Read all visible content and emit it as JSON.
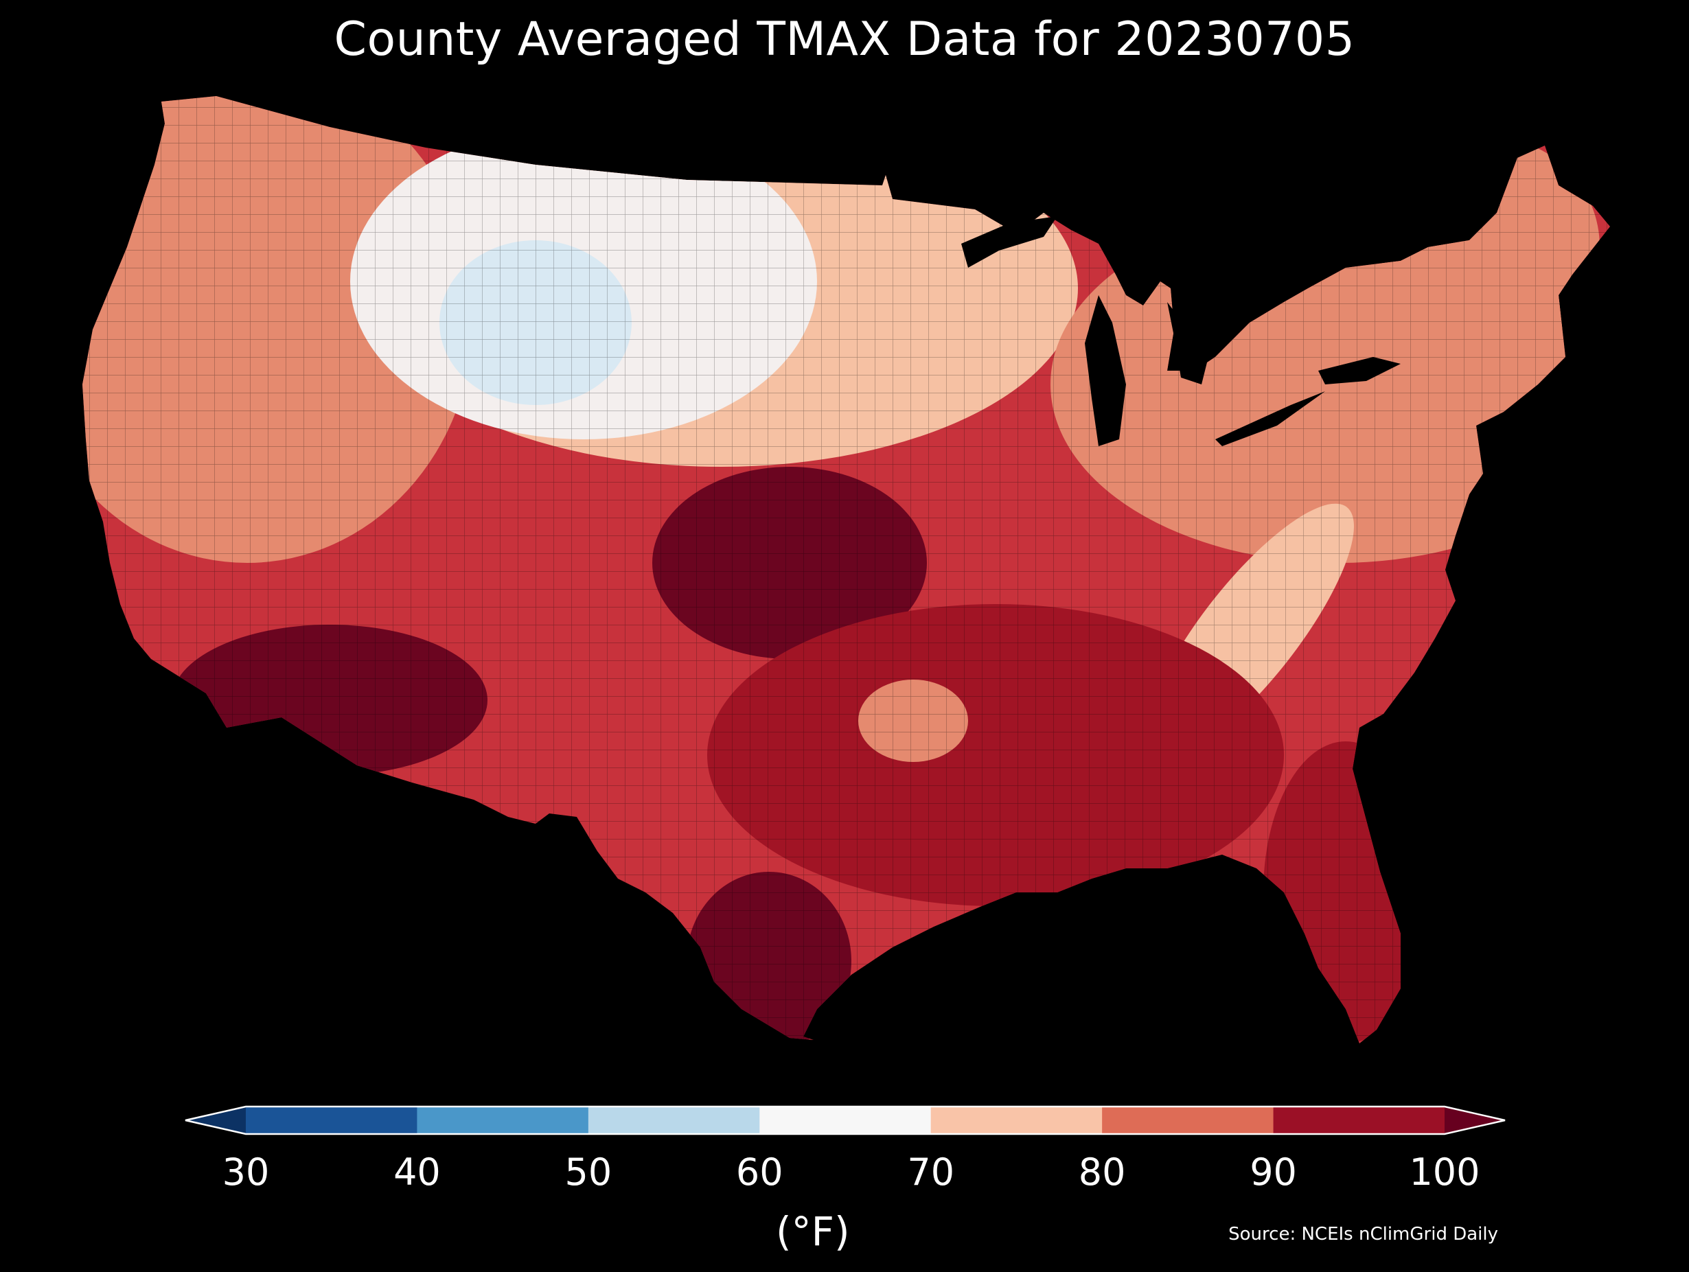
{
  "title": "County Averaged TMAX Data for 20230705",
  "colorbar": {
    "ticks": [
      "30",
      "40",
      "50",
      "60",
      "70",
      "80",
      "90",
      "100"
    ],
    "bins": [
      {
        "from": 30,
        "to": 40,
        "color": "#1a5497"
      },
      {
        "from": 40,
        "to": 50,
        "color": "#4a97c9"
      },
      {
        "from": 50,
        "to": 60,
        "color": "#b9d8ea"
      },
      {
        "from": 60,
        "to": 70,
        "color": "#f7f7f7"
      },
      {
        "from": 70,
        "to": 80,
        "color": "#f9c4a8"
      },
      {
        "from": 80,
        "to": 90,
        "color": "#de6c56"
      },
      {
        "from": 90,
        "to": 100,
        "color": "#9b1026"
      }
    ],
    "under_color": "#0c3264",
    "over_color": "#67001f",
    "unit_label": "(°F)"
  },
  "source": "Source: NCEIs nClimGrid Daily",
  "map_colors": {
    "north_central": "#f4efee",
    "cool_core": "#d9e9f3",
    "warm_light": "#f6c1a3",
    "warm_mid": "#e58a6f",
    "hot": "#c8323c",
    "very_hot": "#a11425",
    "extreme": "#6b0520"
  }
}
